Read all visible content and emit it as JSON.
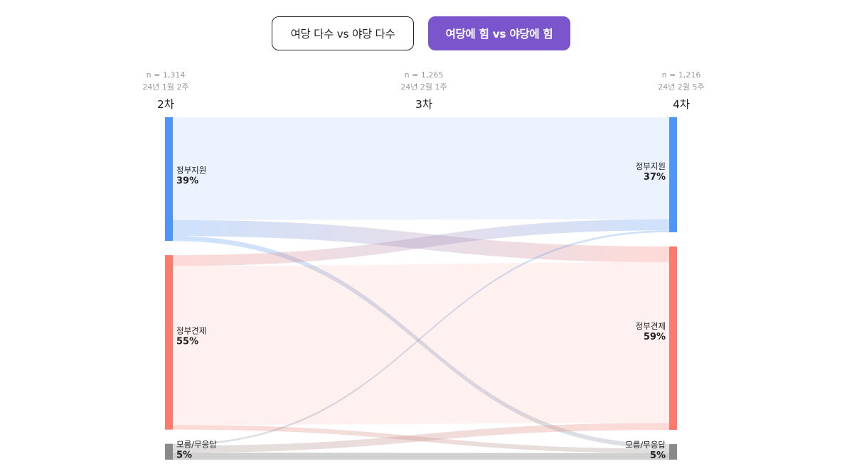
{
  "toggle": {
    "option_1": "여당 다수 vs 야당 다수",
    "option_2": "여당에 힘 vs 야당에 힘",
    "selected": "option_2"
  },
  "waves": [
    {
      "n": "n = 1,314",
      "date": "24년 1월 2주",
      "label": "2차"
    },
    {
      "n": "n = 1,265",
      "date": "24년 2월 1주",
      "label": "3차"
    },
    {
      "n": "n = 1,216",
      "date": "24년 2월 5주",
      "label": "4차"
    }
  ],
  "colors": {
    "support": "#4f95f7",
    "check": "#fa7b6e",
    "unknown": "#8a8a8a",
    "accent": "#7a55cc"
  },
  "chart_data": {
    "type": "sankey",
    "from_wave": "2차",
    "to_wave": "4차",
    "source_nodes": [
      {
        "id": "support",
        "name": "정부지원",
        "pct": "39%",
        "value": 39
      },
      {
        "id": "check",
        "name": "정부견제",
        "pct": "55%",
        "value": 55
      },
      {
        "id": "unknown",
        "name": "모름/무응답",
        "pct": "5%",
        "value": 5
      }
    ],
    "target_nodes": [
      {
        "id": "support",
        "name": "정부지원",
        "pct": "37%",
        "value": 37
      },
      {
        "id": "check",
        "name": "정부견제",
        "pct": "59%",
        "value": 59
      },
      {
        "id": "unknown",
        "name": "모름/무응답",
        "pct": "5%",
        "value": 5
      }
    ],
    "flows": [
      {
        "from": "support",
        "to": "support",
        "value": 32
      },
      {
        "from": "support",
        "to": "check",
        "value": 5
      },
      {
        "from": "support",
        "to": "unknown",
        "value": 1.5
      },
      {
        "from": "check",
        "to": "support",
        "value": 3.5
      },
      {
        "from": "check",
        "to": "check",
        "value": 51
      },
      {
        "from": "check",
        "to": "unknown",
        "value": 1.5
      },
      {
        "from": "unknown",
        "to": "support",
        "value": 0.6
      },
      {
        "from": "unknown",
        "to": "check",
        "value": 2.2
      },
      {
        "from": "unknown",
        "to": "unknown",
        "value": 2.2
      }
    ]
  }
}
